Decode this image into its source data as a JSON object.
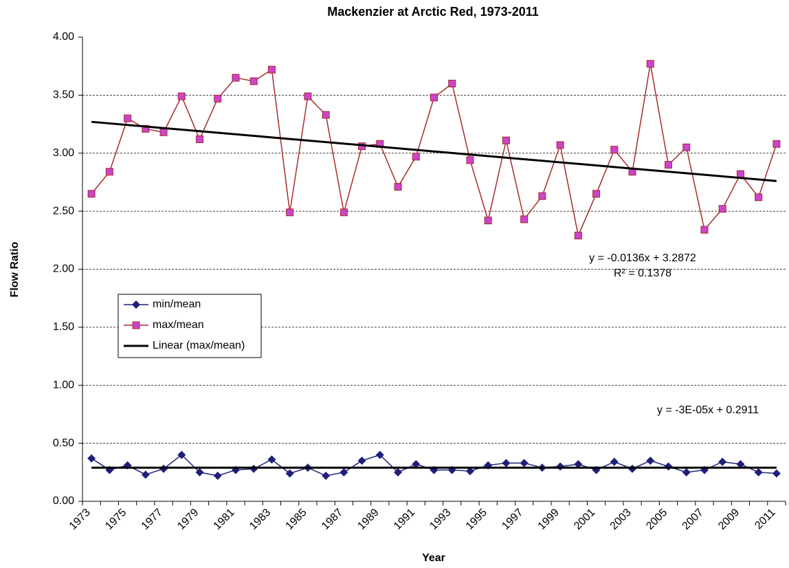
{
  "chart_data": {
    "type": "line",
    "title": "Mackenzier at Arctic Red, 1973-2011",
    "x_label": "Year",
    "y_label": "Flow Ratio",
    "categories": [
      "1973",
      null,
      "1975",
      null,
      "1977",
      null,
      "1979",
      null,
      "1981",
      null,
      "1983",
      null,
      "1985",
      null,
      "1987",
      null,
      "1989",
      null,
      "1991",
      null,
      "1993",
      null,
      "1995",
      null,
      "1997",
      null,
      "1999",
      null,
      "2001",
      null,
      "2003",
      null,
      "2005",
      null,
      "2007",
      null,
      "2009",
      null,
      "2011"
    ],
    "series": [
      {
        "name": "min/mean",
        "color": "#1f1f7a",
        "marker": "diamond",
        "values": [
          0.37,
          0.27,
          0.31,
          0.23,
          0.28,
          0.4,
          0.25,
          0.22,
          0.27,
          0.28,
          0.36,
          0.24,
          0.29,
          0.22,
          0.25,
          0.35,
          0.4,
          0.25,
          0.32,
          0.27,
          0.27,
          0.26,
          0.31,
          0.33,
          0.33,
          0.29,
          0.3,
          0.32,
          0.27,
          0.34,
          0.28,
          0.35,
          0.3,
          0.25,
          0.27,
          0.34,
          0.32,
          0.25,
          0.24
        ]
      },
      {
        "name": "max/mean",
        "color": "#a52a2a",
        "marker": "square",
        "marker_color": "#cc44cc",
        "values": [
          2.65,
          2.84,
          3.3,
          3.21,
          3.18,
          3.49,
          3.12,
          3.47,
          3.65,
          3.62,
          3.72,
          2.49,
          3.49,
          3.33,
          2.49,
          3.06,
          3.08,
          2.71,
          2.97,
          3.48,
          3.6,
          2.94,
          2.42,
          3.11,
          2.43,
          2.63,
          3.07,
          2.29,
          2.65,
          3.03,
          2.84,
          3.77,
          2.9,
          3.05,
          2.34,
          2.52,
          2.82,
          2.62,
          3.08
        ]
      }
    ],
    "trendlines": [
      {
        "name": "Linear (max/mean)",
        "color": "#000000",
        "values": [
          3.27,
          2.76
        ],
        "equation": "y = -0.0136x + 3.2872",
        "r_squared": "R² = 0.1378"
      },
      {
        "color": "#000000",
        "values": [
          0.29,
          0.29
        ],
        "equation": "y = -3E-05x + 0.2911"
      }
    ],
    "ylim": [
      0,
      4
    ],
    "yticks": [
      {
        "value": 0,
        "label": "0.00"
      },
      {
        "value": 0.5,
        "label": "0.50"
      },
      {
        "value": 1,
        "label": "1.00"
      },
      {
        "value": 1.5,
        "label": "1.50"
      },
      {
        "value": 2,
        "label": "2.00"
      },
      {
        "value": 2.5,
        "label": "2.50"
      },
      {
        "value": 3,
        "label": "3.00"
      },
      {
        "value": 3.5,
        "label": "3.50"
      },
      {
        "value": 4,
        "label": "4.00"
      }
    ],
    "grid": true
  }
}
